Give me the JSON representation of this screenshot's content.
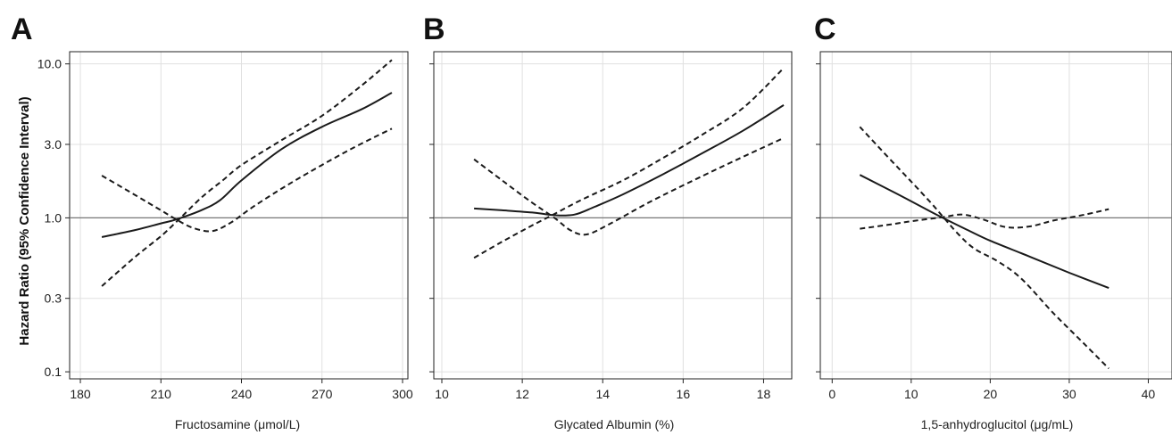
{
  "figure": {
    "ylabel": "Hazard Ratio (95% Confidence Interval)"
  },
  "chart_data": [
    {
      "type": "line",
      "panel": "A",
      "xlabel": "Fructosamine (μmol/L)",
      "ylabel": "Hazard Ratio (95% Confidence Interval)",
      "y_scale": "log",
      "ylim": [
        0.09,
        12.0
      ],
      "xlim": [
        176,
        302
      ],
      "xticks": [
        180,
        210,
        240,
        270,
        300
      ],
      "yticks": [
        0.1,
        0.3,
        1.0,
        3.0,
        10.0
      ],
      "ytick_labels": [
        "0.1",
        "0.3",
        "1.0",
        "3.0",
        "10.0"
      ],
      "reference_line": 1.0,
      "grid": true,
      "series": [
        {
          "style": "solid",
          "points": [
            [
              188,
              0.75
            ],
            [
              200,
              0.83
            ],
            [
              210,
              0.92
            ],
            [
              216,
              0.98
            ],
            [
              225,
              1.12
            ],
            [
              232,
              1.3
            ],
            [
              240,
              1.75
            ],
            [
              255,
              2.8
            ],
            [
              270,
              3.9
            ],
            [
              285,
              5.1
            ],
            [
              296,
              6.5
            ]
          ]
        },
        {
          "style": "dashed",
          "points": [
            [
              188,
              1.88
            ],
            [
              200,
              1.42
            ],
            [
              210,
              1.12
            ],
            [
              216,
              0.97
            ],
            [
              222,
              0.86
            ],
            [
              229,
              0.82
            ],
            [
              236,
              0.93
            ],
            [
              245,
              1.2
            ],
            [
              260,
              1.75
            ],
            [
              280,
              2.75
            ],
            [
              296,
              3.8
            ]
          ]
        },
        {
          "style": "dashed",
          "points": [
            [
              188,
              0.36
            ],
            [
              200,
              0.55
            ],
            [
              210,
              0.76
            ],
            [
              216,
              0.95
            ],
            [
              225,
              1.35
            ],
            [
              233,
              1.75
            ],
            [
              240,
              2.2
            ],
            [
              255,
              3.2
            ],
            [
              270,
              4.6
            ],
            [
              285,
              7.3
            ],
            [
              296,
              10.6
            ]
          ]
        }
      ]
    },
    {
      "type": "line",
      "panel": "B",
      "xlabel": "Glycated Albumin (%)",
      "ylabel": "",
      "y_scale": "log",
      "ylim": [
        0.09,
        12.0
      ],
      "xlim": [
        9.8,
        18.7
      ],
      "xticks": [
        10,
        12,
        14,
        16,
        18
      ],
      "yticks": [
        0.1,
        0.3,
        1.0,
        3.0,
        10.0
      ],
      "ytick_labels": [
        "",
        "",
        "",
        "",
        ""
      ],
      "reference_line": 1.0,
      "grid": true,
      "series": [
        {
          "style": "solid",
          "points": [
            [
              10.8,
              1.15
            ],
            [
              11.5,
              1.12
            ],
            [
              12.3,
              1.08
            ],
            [
              12.8,
              1.04
            ],
            [
              13.3,
              1.05
            ],
            [
              13.8,
              1.18
            ],
            [
              14.5,
              1.42
            ],
            [
              15.5,
              1.92
            ],
            [
              16.5,
              2.65
            ],
            [
              17.5,
              3.7
            ],
            [
              18.5,
              5.4
            ]
          ]
        },
        {
          "style": "dashed",
          "points": [
            [
              10.8,
              2.4
            ],
            [
              11.5,
              1.75
            ],
            [
              12.2,
              1.28
            ],
            [
              12.8,
              1.0
            ],
            [
              13.2,
              0.83
            ],
            [
              13.6,
              0.78
            ],
            [
              14.2,
              0.92
            ],
            [
              15.2,
              1.28
            ],
            [
              16.5,
              1.88
            ],
            [
              17.5,
              2.5
            ],
            [
              18.5,
              3.3
            ]
          ]
        },
        {
          "style": "dashed",
          "points": [
            [
              10.8,
              0.55
            ],
            [
              11.5,
              0.7
            ],
            [
              12.2,
              0.88
            ],
            [
              12.8,
              1.06
            ],
            [
              13.5,
              1.32
            ],
            [
              14.5,
              1.75
            ],
            [
              15.5,
              2.45
            ],
            [
              16.5,
              3.5
            ],
            [
              17.5,
              5.2
            ],
            [
              18.5,
              9.4
            ]
          ]
        }
      ]
    },
    {
      "type": "line",
      "panel": "C",
      "xlabel": "1,5-anhydroglucitol (μg/mL)",
      "ylabel": "",
      "y_scale": "log",
      "ylim": [
        0.09,
        12.0
      ],
      "xlim": [
        -1.5,
        43
      ],
      "xticks": [
        0,
        10,
        20,
        30,
        40
      ],
      "yticks": [
        0.1,
        0.3,
        1.0,
        3.0,
        10.0
      ],
      "ytick_labels": [
        "",
        "",
        "",
        "",
        ""
      ],
      "reference_line": 1.0,
      "grid": true,
      "series": [
        {
          "style": "solid",
          "points": [
            [
              3.5,
              1.9
            ],
            [
              8.0,
              1.45
            ],
            [
              12.0,
              1.13
            ],
            [
              14.0,
              1.0
            ],
            [
              17.0,
              0.84
            ],
            [
              20.0,
              0.71
            ],
            [
              25.0,
              0.56
            ],
            [
              30.0,
              0.44
            ],
            [
              35.0,
              0.35
            ]
          ]
        },
        {
          "style": "dashed",
          "points": [
            [
              3.5,
              3.9
            ],
            [
              7.0,
              2.5
            ],
            [
              10.0,
              1.72
            ],
            [
              12.5,
              1.25
            ],
            [
              14.0,
              1.02
            ],
            [
              16.0,
              0.78
            ],
            [
              18.0,
              0.63
            ],
            [
              21.0,
              0.52
            ],
            [
              24.0,
              0.4
            ],
            [
              28.0,
              0.24
            ],
            [
              32.0,
              0.15
            ],
            [
              35.0,
              0.105
            ]
          ]
        },
        {
          "style": "dashed",
          "points": [
            [
              3.5,
              0.85
            ],
            [
              7.0,
              0.9
            ],
            [
              10.0,
              0.95
            ],
            [
              14.0,
              1.01
            ],
            [
              16.5,
              1.05
            ],
            [
              19.0,
              0.98
            ],
            [
              22.0,
              0.87
            ],
            [
              25.0,
              0.88
            ],
            [
              28.0,
              0.96
            ],
            [
              32.0,
              1.05
            ],
            [
              35.0,
              1.14
            ]
          ]
        }
      ]
    }
  ]
}
